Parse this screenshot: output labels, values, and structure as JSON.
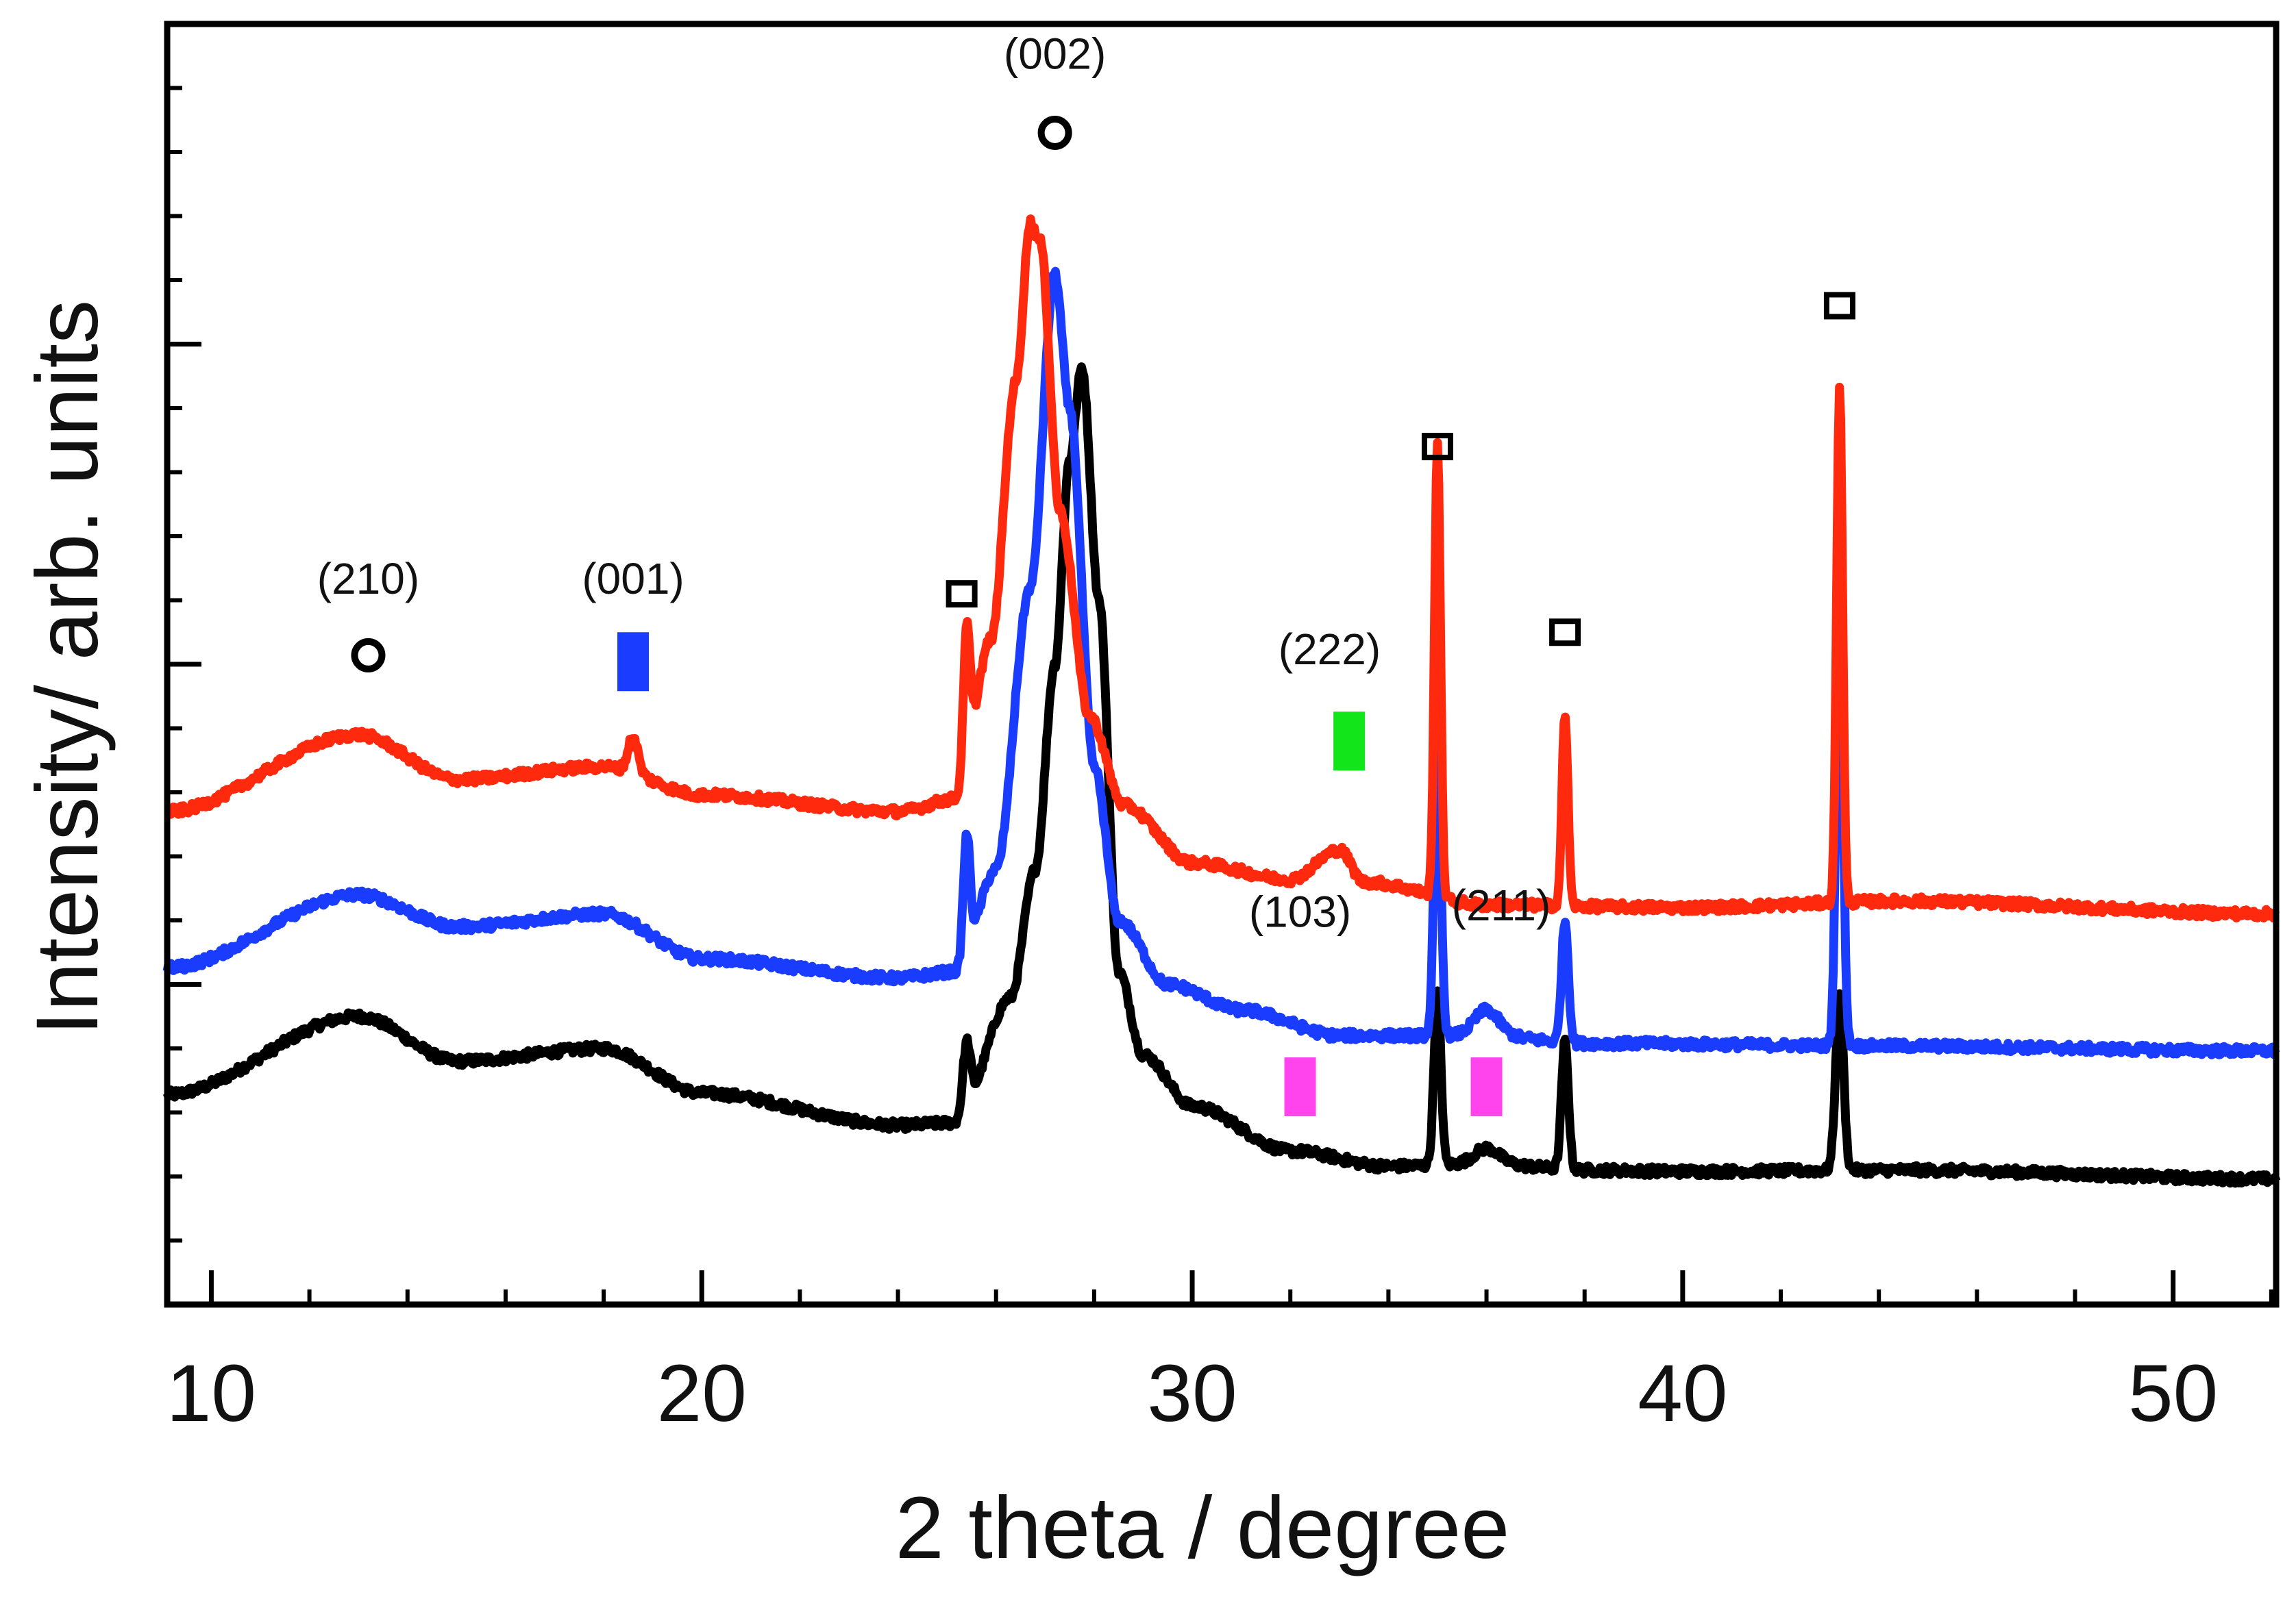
{
  "chart_data": {
    "type": "line",
    "title": "",
    "xlabel": "2 theta / degree",
    "ylabel": "Intensity/ arb. units",
    "xlim": [
      9.1,
      52.1
    ],
    "ylim": [
      0,
      10
    ],
    "xticks": [
      10,
      20,
      30,
      40,
      50
    ],
    "xtick_labels": [
      "10",
      "20",
      "30",
      "40",
      "50"
    ],
    "y_tick_labels_shown": false,
    "series": [
      {
        "name": "black",
        "color": "#000000",
        "baseline": [
          [
            9.1,
            1.64
          ],
          [
            13.0,
            2.25
          ],
          [
            15.0,
            1.9
          ],
          [
            18.0,
            2.0
          ],
          [
            20.0,
            1.65
          ],
          [
            24.0,
            1.4
          ],
          [
            25.2,
            1.42
          ],
          [
            26.3,
            2.4
          ],
          [
            26.8,
            3.4
          ],
          [
            27.2,
            5.0
          ],
          [
            27.5,
            6.6
          ],
          [
            27.75,
            7.32
          ],
          [
            28.1,
            5.5
          ],
          [
            28.5,
            2.6
          ],
          [
            29.0,
            1.95
          ],
          [
            30.0,
            1.55
          ],
          [
            32.0,
            1.2
          ],
          [
            34.0,
            1.08
          ],
          [
            36.0,
            1.1
          ],
          [
            38.0,
            1.05
          ],
          [
            40.0,
            1.04
          ],
          [
            44.5,
            1.05
          ],
          [
            52.1,
            0.98
          ]
        ],
        "peaks": [
          [
            25.4,
            0.55,
            0.08
          ],
          [
            35.0,
            1.35,
            0.07
          ],
          [
            36.0,
            0.12,
            0.25
          ],
          [
            37.6,
            1.0,
            0.07
          ],
          [
            43.2,
            1.35,
            0.08
          ]
        ]
      },
      {
        "name": "blue",
        "color": "#1a3cff",
        "baseline": [
          [
            9.1,
            2.63
          ],
          [
            13.0,
            3.2
          ],
          [
            15.0,
            2.95
          ],
          [
            18.0,
            3.05
          ],
          [
            20.0,
            2.7
          ],
          [
            24.0,
            2.55
          ],
          [
            25.2,
            2.6
          ],
          [
            26.0,
            3.4
          ],
          [
            26.7,
            5.6
          ],
          [
            27.2,
            8.05
          ],
          [
            27.5,
            7.0
          ],
          [
            28.0,
            4.2
          ],
          [
            28.5,
            3.0
          ],
          [
            29.5,
            2.5
          ],
          [
            31.0,
            2.3
          ],
          [
            33.0,
            2.1
          ],
          [
            36.0,
            2.1
          ],
          [
            38.0,
            2.04
          ],
          [
            44.0,
            2.02
          ],
          [
            52.1,
            1.98
          ]
        ],
        "peaks": [
          [
            25.4,
            0.95,
            0.07
          ],
          [
            35.0,
            2.2,
            0.07
          ],
          [
            36.0,
            0.2,
            0.25
          ],
          [
            37.6,
            0.95,
            0.07
          ],
          [
            43.2,
            3.45,
            0.07
          ]
        ]
      },
      {
        "name": "red",
        "color": "#ff2a0e",
        "baseline": [
          [
            9.1,
            3.85
          ],
          [
            13.0,
            4.45
          ],
          [
            15.0,
            4.1
          ],
          [
            18.0,
            4.2
          ],
          [
            20.0,
            3.98
          ],
          [
            24.0,
            3.85
          ],
          [
            25.2,
            3.95
          ],
          [
            25.9,
            5.2
          ],
          [
            26.4,
            7.2
          ],
          [
            26.7,
            8.45
          ],
          [
            26.9,
            8.3
          ],
          [
            27.3,
            6.2
          ],
          [
            27.9,
            4.6
          ],
          [
            28.6,
            3.9
          ],
          [
            30.0,
            3.45
          ],
          [
            32.0,
            3.32
          ],
          [
            33.0,
            3.55
          ],
          [
            33.5,
            3.3
          ],
          [
            36.0,
            3.12
          ],
          [
            40.0,
            3.1
          ],
          [
            44.5,
            3.15
          ],
          [
            52.1,
            3.05
          ]
        ],
        "peaks": [
          [
            18.6,
            0.28,
            0.1
          ],
          [
            25.4,
            1.1,
            0.07
          ],
          [
            35.0,
            3.55,
            0.06
          ],
          [
            37.6,
            1.5,
            0.06
          ],
          [
            43.2,
            4.05,
            0.06
          ]
        ]
      }
    ],
    "annotations": [
      {
        "label": "(210)",
        "x": 13.2,
        "y": 5.55
      },
      {
        "label": "(001)",
        "x": 18.6,
        "y": 5.55
      },
      {
        "label": "(002)",
        "x": 27.2,
        "y": 9.65
      },
      {
        "label": "(222)",
        "x": 32.8,
        "y": 5.0
      },
      {
        "label": "(103)",
        "x": 32.2,
        "y": 2.95
      },
      {
        "label": "(211)",
        "x": 36.3,
        "y": 3.0
      }
    ],
    "markers": [
      {
        "shape": "circle",
        "x": 13.2,
        "y": 5.07,
        "color": "#000000"
      },
      {
        "shape": "circle",
        "x": 27.2,
        "y": 9.15,
        "color": "#000000"
      },
      {
        "shape": "open-square",
        "x": 25.3,
        "y": 5.55,
        "color": "#000000"
      },
      {
        "shape": "open-square",
        "x": 35.0,
        "y": 6.7,
        "color": "#000000"
      },
      {
        "shape": "open-square",
        "x": 37.6,
        "y": 5.25,
        "color": "#000000"
      },
      {
        "shape": "open-square",
        "x": 43.2,
        "y": 7.8,
        "color": "#000000"
      },
      {
        "shape": "filled-rect",
        "x": 18.6,
        "y": 5.02,
        "color": "#1a3cff"
      },
      {
        "shape": "filled-rect",
        "x": 33.2,
        "y": 4.4,
        "color": "#12e61a"
      },
      {
        "shape": "filled-rect",
        "x": 32.2,
        "y": 1.7,
        "color": "#ff44ee"
      },
      {
        "shape": "filled-rect",
        "x": 36.0,
        "y": 1.7,
        "color": "#ff44ee"
      }
    ]
  }
}
